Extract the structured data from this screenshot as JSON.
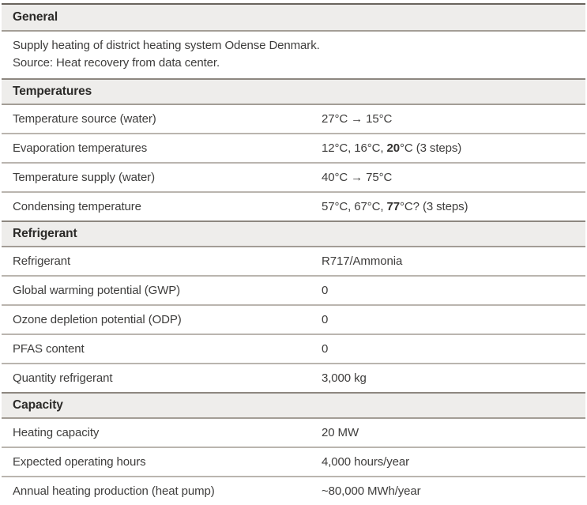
{
  "colors": {
    "top_border": "#6a645d",
    "header_border_top": "#8d8780",
    "header_border_bottom": "#a39d96",
    "row_separator": "#bab5af",
    "header_bg": "#eeedeb",
    "header_text": "#2b2a28",
    "body_text": "#3e3d3c"
  },
  "sections": [
    {
      "title": "General",
      "lines": [
        "Supply heating of district heating system Odense Denmark.",
        "Source: Heat recovery from data center."
      ]
    },
    {
      "title": "Temperatures",
      "rows": [
        {
          "label": "Temperature source (water)",
          "value": [
            {
              "text": "27°C → 15°C"
            }
          ]
        },
        {
          "label": "Evaporation temperatures",
          "value": [
            {
              "text": "12°C, 16°C, "
            },
            {
              "text": "20",
              "bold": true
            },
            {
              "text": "°C (3 steps)"
            }
          ]
        },
        {
          "label": "Temperature supply (water)",
          "value": [
            {
              "text": "40°C → 75°C"
            }
          ]
        },
        {
          "label": "Condensing temperature",
          "value": [
            {
              "text": "57°C, 67°C, "
            },
            {
              "text": "77",
              "bold": true
            },
            {
              "text": "°C? (3 steps)"
            }
          ]
        }
      ]
    },
    {
      "title": "Refrigerant",
      "rows": [
        {
          "label": "Refrigerant",
          "value": [
            {
              "text": "R717/Ammonia"
            }
          ]
        },
        {
          "label": "Global warming potential (GWP)",
          "value": [
            {
              "text": "0"
            }
          ]
        },
        {
          "label": "Ozone depletion potential (ODP)",
          "value": [
            {
              "text": "0"
            }
          ]
        },
        {
          "label": "PFAS content",
          "value": [
            {
              "text": "0"
            }
          ]
        },
        {
          "label": "Quantity refrigerant",
          "value": [
            {
              "text": "3,000 kg"
            }
          ]
        }
      ]
    },
    {
      "title": "Capacity",
      "rows": [
        {
          "label": "Heating capacity",
          "value": [
            {
              "text": "20 MW"
            }
          ]
        },
        {
          "label": "Expected operating hours",
          "value": [
            {
              "text": "4,000 hours/year"
            }
          ]
        },
        {
          "label": "Annual heating production (heat pump)",
          "value": [
            {
              "text": "~80,000 MWh/year"
            }
          ]
        }
      ]
    }
  ]
}
